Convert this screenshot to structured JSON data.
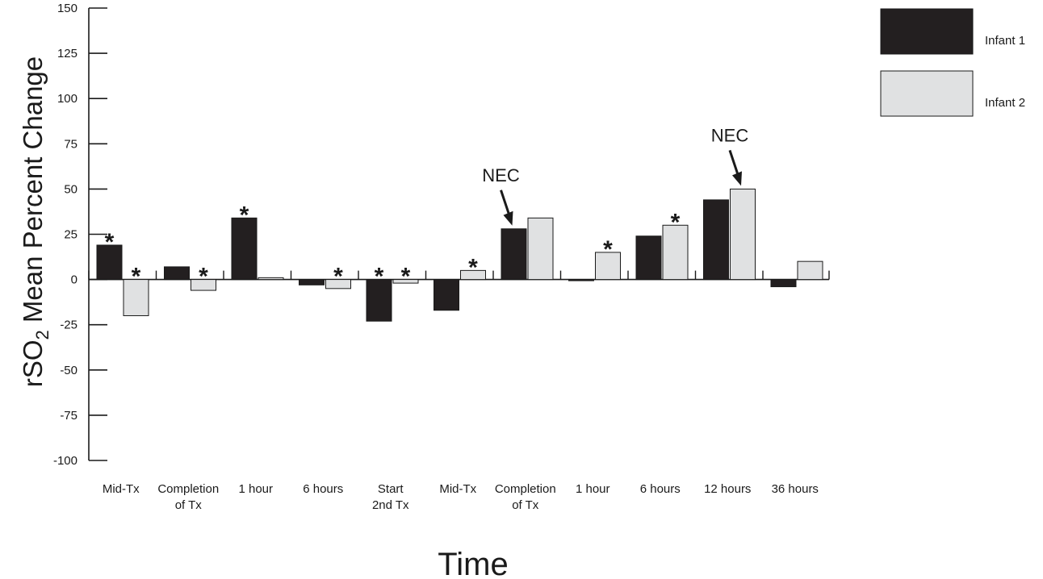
{
  "chart_data": {
    "type": "bar",
    "xlabel": "Time",
    "ylabel_main": "rSO",
    "ylabel_sub": "2",
    "ylabel_rest": " Mean Percent Change",
    "ylim": [
      -100,
      150
    ],
    "yticks": [
      150,
      125,
      100,
      75,
      50,
      25,
      0,
      -25,
      -50,
      -75,
      -100
    ],
    "categories": [
      [
        "Mid-Tx"
      ],
      [
        "Completion",
        "of Tx"
      ],
      [
        "1 hour"
      ],
      [
        "6 hours"
      ],
      [
        "Start",
        "2nd Tx"
      ],
      [
        "Mid-Tx"
      ],
      [
        "Completion",
        "of Tx"
      ],
      [
        "1 hour"
      ],
      [
        "6 hours"
      ],
      [
        "12 hours"
      ],
      [
        "36 hours"
      ]
    ],
    "series": [
      {
        "name": "Infant 1",
        "color": "#231f20",
        "values": [
          19,
          7,
          34,
          -3,
          -23,
          -17,
          28,
          0,
          24,
          44,
          -4
        ]
      },
      {
        "name": "Infant 2",
        "color": "#e0e1e2",
        "values": [
          -20,
          -6,
          1,
          -5,
          -2,
          5,
          34,
          15,
          30,
          50,
          10
        ]
      }
    ],
    "significance_marks": [
      {
        "category": 0,
        "series": 0,
        "symbol": "*"
      },
      {
        "category": 0,
        "series": 1,
        "symbol": "*"
      },
      {
        "category": 1,
        "series": 1,
        "symbol": "*"
      },
      {
        "category": 2,
        "series": 0,
        "symbol": "*"
      },
      {
        "category": 3,
        "series": 1,
        "symbol": "*"
      },
      {
        "category": 4,
        "series": 0,
        "symbol": "*"
      },
      {
        "category": 4,
        "series": 1,
        "symbol": "*"
      },
      {
        "category": 5,
        "series": 1,
        "symbol": "*"
      },
      {
        "category": 7,
        "series": 1,
        "symbol": "*"
      },
      {
        "category": 8,
        "series": 1,
        "symbol": "*"
      }
    ],
    "annotations": [
      {
        "text": "NEC",
        "category": 6,
        "series": 0
      },
      {
        "text": "NEC",
        "category": 9,
        "series": 1
      }
    ],
    "legend": {
      "position": "top-right"
    },
    "grid": false
  }
}
